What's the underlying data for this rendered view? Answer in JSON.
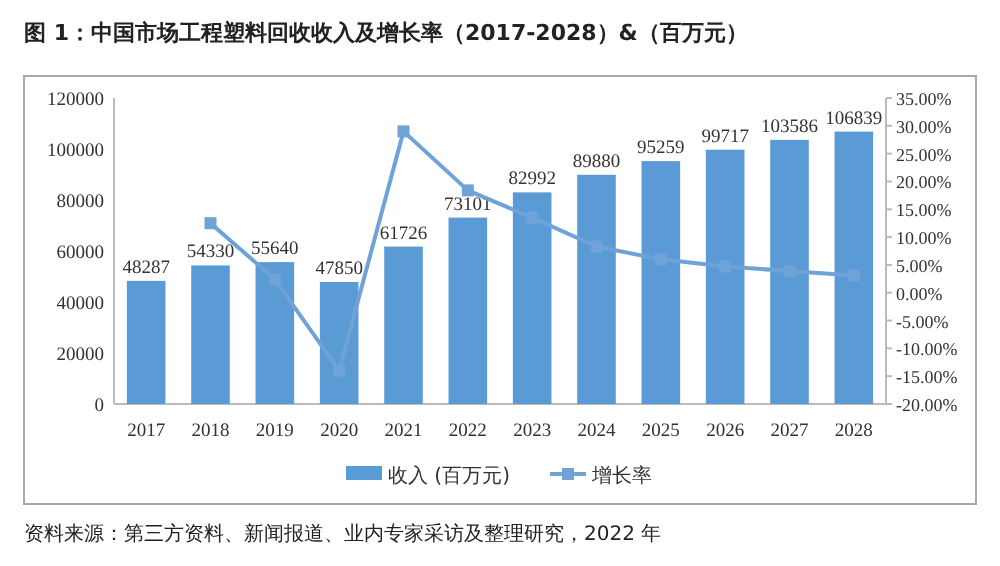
{
  "chart_data": {
    "type": "bar",
    "title": "图 1：中国市场工程塑料回收收入及增长率（2017-2028）&（百万元）",
    "categories": [
      "2017",
      "2018",
      "2019",
      "2020",
      "2021",
      "2022",
      "2023",
      "2024",
      "2025",
      "2026",
      "2027",
      "2028"
    ],
    "series": [
      {
        "name": "收入 (百万元)",
        "color": "#5b9bd5",
        "values": [
          48287,
          54330,
          55640,
          47850,
          61726,
          73101,
          82992,
          89880,
          95259,
          99717,
          103586,
          106839
        ],
        "data_labels": true
      },
      {
        "name": "增长率",
        "type": "line",
        "axis": "y2",
        "color": "#6fa3d8",
        "marker": "square",
        "values": [
          null,
          12.5,
          2.4,
          -14.0,
          29.0,
          18.4,
          13.5,
          8.3,
          6.0,
          4.7,
          3.9,
          3.1
        ]
      }
    ],
    "ylim": [
      0,
      120000
    ],
    "yticks": [
      0,
      20000,
      40000,
      60000,
      80000,
      100000,
      120000
    ],
    "y2lim": [
      -20,
      35
    ],
    "y2ticks": [
      {
        "value": -20,
        "label": "-20.00%"
      },
      {
        "value": -15,
        "label": "-15.00%"
      },
      {
        "value": -10,
        "label": "-10.00%"
      },
      {
        "value": -5,
        "label": "-5.00%"
      },
      {
        "value": 0,
        "label": "0.00%"
      },
      {
        "value": 5,
        "label": "5.00%"
      },
      {
        "value": 10,
        "label": "10.00%"
      },
      {
        "value": 15,
        "label": "15.00%"
      },
      {
        "value": 20,
        "label": "20.00%"
      },
      {
        "value": 25,
        "label": "25.00%"
      },
      {
        "value": 30,
        "label": "30.00%"
      },
      {
        "value": 35,
        "label": "35.00%"
      }
    ],
    "legend": "bottom",
    "annotations": [
      "资料来源：第三方资料、新闻报道、业内专家采访及整理研究，2022 年"
    ]
  }
}
